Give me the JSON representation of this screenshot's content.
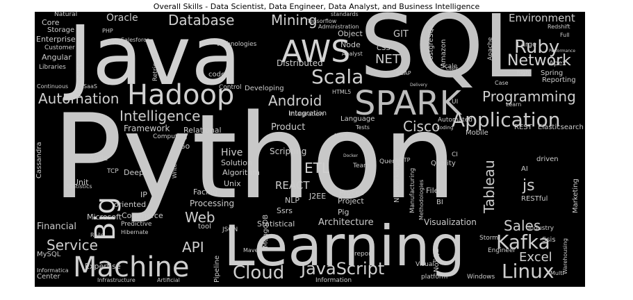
{
  "title": "Overall Skills - Data Scientist, Data Engineer, Data Analyst, and Business Intelligence",
  "colors": {
    "background": "#000000",
    "frame": "#ffffff"
  },
  "words": [
    "Python",
    "Java",
    "SQL",
    "Learning",
    "Machine",
    "Hadoop",
    "AWS",
    "SPARK",
    "Scala",
    "Application",
    "Database",
    "Intelligence",
    "Automation",
    "Big",
    "Kafka",
    "Linux",
    "JavaScript",
    "Cloud",
    "Ruby",
    "Network",
    "Programming",
    "Tableau",
    "Android",
    "Cisco",
    "ETL",
    "Service",
    "Sales",
    "Excel",
    "Web",
    "API",
    "Mining",
    "js",
    "REACT",
    "Hive",
    "Oracle",
    "Environment",
    "Financial",
    "Architecture",
    "Visualization",
    "Statistical",
    "Product",
    "Framework",
    "Scripting",
    "Distributed",
    "NET",
    "GIT",
    "Node",
    "Object",
    "Processing",
    "Solution",
    "Algorithm",
    "Unix",
    "Facing",
    "Microsoft",
    "Agile",
    "Unit",
    "Core",
    "Storage",
    "Enterprise",
    "Angular",
    "Integration",
    "Language",
    "Mobile",
    "REST",
    "Elasticsearch",
    "Reporting",
    "Large",
    "Apex",
    "Spring",
    "MySQL",
    "Center",
    "Cassandra",
    "MongoDB",
    "Pipeline",
    "Proces",
    "Project",
    "Ssrs",
    "NLP",
    "J2EE",
    "Pig",
    "File",
    "BI",
    "AI",
    "RESTful",
    "Quality",
    "Networking",
    "Deep",
    "oriented",
    "Commerce",
    "Expertise",
    "Go",
    "Relational",
    "Computing",
    "Developing",
    "Control",
    "code",
    "Retrieval",
    "Mapreduce",
    "Stack",
    "Customer",
    "Libraries",
    "Natural",
    "Salesforce",
    "technologies",
    "PHP",
    "CSS",
    "PostgreSQL",
    "Amazon",
    "Apache",
    "Redshift",
    "Full",
    "high",
    "Marketing",
    "Industry",
    "Ssis",
    "Warehousing",
    "Storm",
    "Engineer",
    "Visual",
    "NoSQL",
    "report",
    "Information",
    "platform",
    "Windows",
    "Infrastructure",
    "Artificial",
    "Automated",
    "Integration",
    "Continuous",
    "SaaS",
    "Manufacturing",
    "Methodologies",
    "Team",
    "Tests",
    "Queries",
    "Predictive",
    "Hibernate",
    "Rails",
    "Informatica",
    "Statistics",
    "tool",
    "JSON",
    "Maven",
    "TCP",
    "IP",
    "Write",
    "driven",
    "CI",
    "Scale",
    "HTML5",
    "Azure",
    "UI",
    "Case",
    "Learn",
    "Multi",
    "Coding",
    "HTTP",
    "Docker",
    "Tensorflow",
    "Administration",
    "Analyst",
    "SOAP",
    "standards",
    "Delivery",
    "Performance",
    "Client"
  ]
}
